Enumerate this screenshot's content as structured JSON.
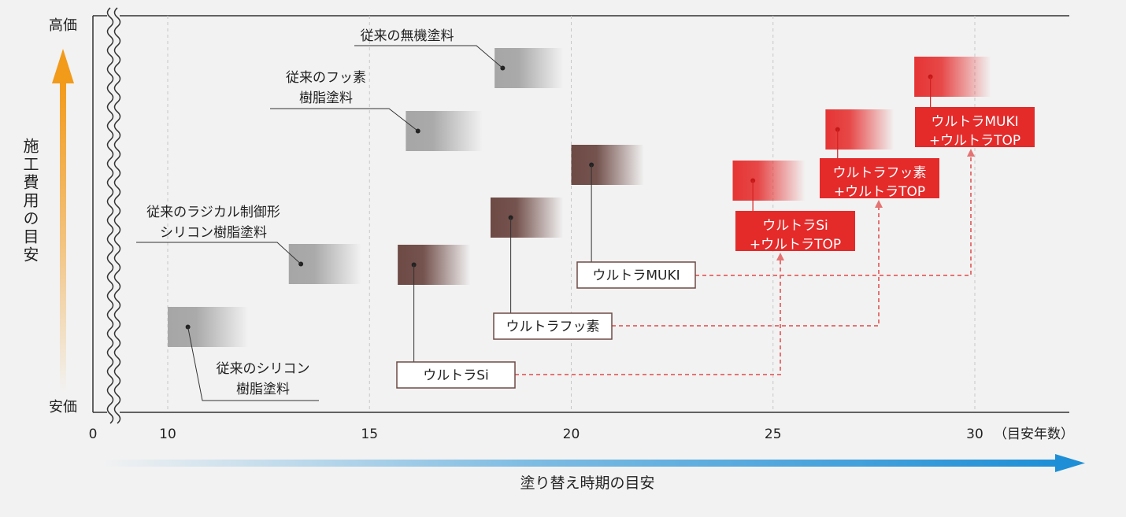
{
  "chart_data": {
    "type": "scatter",
    "x_ticks": [
      "0",
      "10",
      "15",
      "20",
      "25",
      "30"
    ],
    "x_unit": "（目安年数）",
    "x_axis_label": "塗り替え時期の目安",
    "y_axis_label": "施工費用の目安",
    "y_top_label": "高価",
    "y_bottom_label": "安価",
    "colors": {
      "conventional": "#a6a6a6",
      "ultra": "#6e4a45",
      "ultra_top": "#e52a2a",
      "connector": "#e57373",
      "y_arrow": "#f29a1a",
      "x_arrow": "#1e8fd6",
      "label_border": "#6e4a45"
    },
    "products": [
      {
        "id": "conventional-silicone",
        "group": "conventional",
        "lines": [
          "従来のシリコン",
          "樹脂塗料"
        ],
        "years": [
          10,
          12
        ],
        "point": 10.5
      },
      {
        "id": "conventional-radical",
        "group": "conventional",
        "lines": [
          "従来のラジカル制御形",
          "シリコン樹脂塗料"
        ],
        "years": [
          13,
          14.8
        ],
        "point": 13.3
      },
      {
        "id": "conventional-fluorine",
        "group": "conventional",
        "lines": [
          "従来のフッ素",
          "樹脂塗料"
        ],
        "years": [
          15.9,
          17.8
        ],
        "point": 16.2
      },
      {
        "id": "conventional-inorganic",
        "group": "conventional",
        "lines": [
          "従来の無機塗料"
        ],
        "years": [
          18.1,
          19.8
        ],
        "point": 18.3
      },
      {
        "id": "ultra-si",
        "group": "ultra",
        "lines": [
          "ウルトラSi"
        ],
        "years": [
          15.7,
          17.5
        ],
        "point": 16.1
      },
      {
        "id": "ultra-fluorine",
        "group": "ultra",
        "lines": [
          "ウルトラフッ素"
        ],
        "years": [
          18,
          19.8
        ],
        "point": 18.5
      },
      {
        "id": "ultra-muki",
        "group": "ultra",
        "lines": [
          "ウルトラMUKI"
        ],
        "years": [
          20,
          21.8
        ],
        "point": 20.5
      },
      {
        "id": "ultra-si-top",
        "group": "ultra_top",
        "lines": [
          "ウルトラSi",
          "+ウルトラTOP"
        ],
        "years": [
          24,
          25.8
        ],
        "point": 24.5
      },
      {
        "id": "ultra-fluorine-top",
        "group": "ultra_top",
        "lines": [
          "ウルトラフッ素",
          "+ウルトラTOP"
        ],
        "years": [
          26.3,
          28
        ],
        "point": 26.6
      },
      {
        "id": "ultra-muki-top",
        "group": "ultra_top",
        "lines": [
          "ウルトラMUKI",
          "+ウルトラTOP"
        ],
        "years": [
          28.5,
          30.4
        ],
        "point": 28.9
      }
    ]
  }
}
